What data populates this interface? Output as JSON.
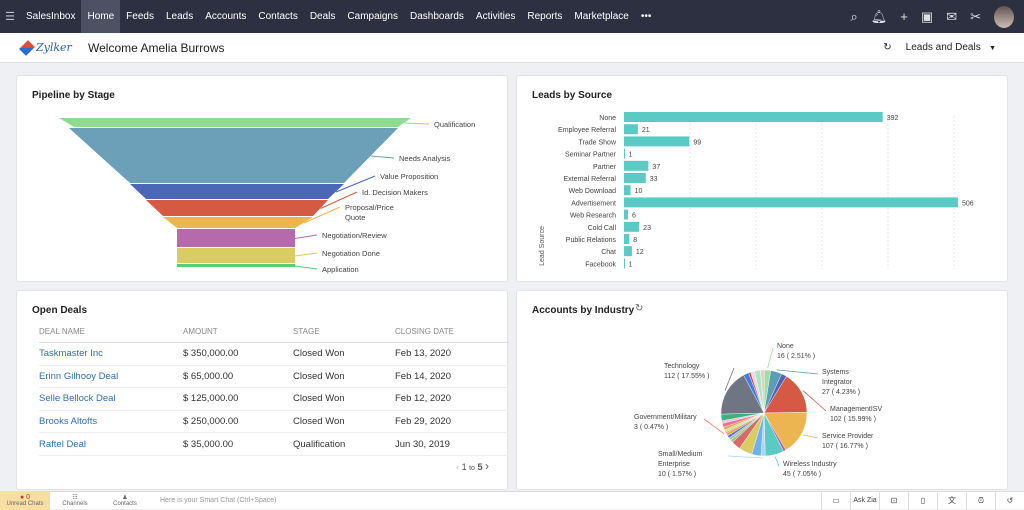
{
  "nav": {
    "items": [
      "SalesInbox",
      "Home",
      "Feeds",
      "Leads",
      "Accounts",
      "Contacts",
      "Deals",
      "Campaigns",
      "Dashboards",
      "Activities",
      "Reports",
      "Marketplace"
    ],
    "active": "Home",
    "more": "•••"
  },
  "header": {
    "logo": "Zylker",
    "welcome": "Welcome Amelia Burrows",
    "dashboard_select": "Leads and Deals"
  },
  "pipeline": {
    "title": "Pipeline by Stage"
  },
  "leads": {
    "title": "Leads by Source"
  },
  "open_deals": {
    "title": "Open Deals",
    "columns": [
      "DEAL NAME",
      "AMOUNT",
      "STAGE",
      "CLOSING DATE"
    ],
    "rows": [
      [
        "Taskmaster Inc",
        "$ 350,000.00",
        "Closed Won",
        "Feb 13, 2020"
      ],
      [
        "Erinn Gilhooy Deal",
        "$ 65,000.00",
        "Closed Won",
        "Feb 14, 2020"
      ],
      [
        "Selle Bellock Deal",
        "$ 125,000.00",
        "Closed Won",
        "Feb 12, 2020"
      ],
      [
        "Brooks Altofts",
        "$ 250,000.00",
        "Closed Won",
        "Feb 29, 2020"
      ],
      [
        "Raftel Deal",
        "$ 35,000.00",
        "Qualification",
        "Jun 30, 2019"
      ]
    ],
    "pager": {
      "current": "1",
      "sep": "to",
      "total": "5"
    }
  },
  "accounts": {
    "title": "Accounts by Industry"
  },
  "bottom": {
    "unread": "Unread Chats",
    "unread_count": "0",
    "channels": "Channels",
    "contacts": "Contacts",
    "smart_chat_placeholder": "Here is your Smart Chat (Ctrl+Space)",
    "ask_zia": "Ask Zia"
  },
  "chart_data": [
    {
      "type": "funnel",
      "title": "Pipeline by Stage",
      "categories": [
        "Qualification",
        "Needs Analysis",
        "Value Proposition",
        "Id. Decision Makers",
        "Proposal/Price Quote",
        "Negotiation/Review",
        "Negotiation Done",
        "Application"
      ],
      "colors": [
        "#8fdc8f",
        "#6ba0b8",
        "#4b67b5",
        "#d45a43",
        "#ecb551",
        "#b66aab",
        "#d8cc62",
        "#5ccc70"
      ]
    },
    {
      "type": "bar",
      "orientation": "horizontal",
      "title": "Leads by Source",
      "ylabel": "Lead Source",
      "color": "#5ccac4",
      "grid": true,
      "categories": [
        "None",
        "Employee Referral",
        "Trade Show",
        "Seminar Partner",
        "Partner",
        "External Referral",
        "Web Download",
        "Advertisement",
        "Web Research",
        "Cold Call",
        "Public Relations",
        "Chat",
        "Facebook"
      ],
      "values": [
        392,
        21,
        99,
        1,
        37,
        33,
        10,
        506,
        6,
        23,
        8,
        12,
        1
      ],
      "xlim": [
        0,
        550
      ]
    },
    {
      "type": "pie",
      "title": "Accounts by Industry",
      "slices": [
        {
          "name": "None",
          "value": 16,
          "percent": 2.51,
          "color": "#9ee09e"
        },
        {
          "name": "Systems Integrator",
          "value": 27,
          "percent": 4.23,
          "color": "#5c9db5"
        },
        {
          "percent": 2.0,
          "color": "#4b63b8"
        },
        {
          "name": "ManagementISV",
          "value": 102,
          "percent": 15.99,
          "color": "#d65a43"
        },
        {
          "name": "Service Provider",
          "value": 107,
          "percent": 16.77,
          "color": "#ecb551"
        },
        {
          "percent": 1.0,
          "color": "#a863ab"
        },
        {
          "name": "Wireless Industry",
          "value": 45,
          "percent": 7.05,
          "color": "#5ccac4"
        },
        {
          "name": "Small/Medium Enterprise",
          "value": 10,
          "percent": 1.57,
          "color": "#a6d8f0"
        },
        {
          "percent": 3.5,
          "color": "#70b0ee"
        },
        {
          "percent": 5.0,
          "color": "#d8cc62"
        },
        {
          "percent": 3.5,
          "color": "#d46a6a"
        },
        {
          "percent": 1.0,
          "color": "#8fc98f"
        },
        {
          "percent": 1.0,
          "color": "#c4b89a"
        },
        {
          "percent": 1.0,
          "color": "#3b7de0"
        },
        {
          "percent": 1.0,
          "color": "#f0a040"
        },
        {
          "name": "Government/Military",
          "value": 3,
          "percent": 0.47,
          "color": "#f08060"
        },
        {
          "percent": 1.0,
          "color": "#c8e0a0"
        },
        {
          "percent": 1.0,
          "color": "#f0a040"
        },
        {
          "percent": 1.5,
          "color": "#f07090"
        },
        {
          "percent": 1.0,
          "color": "#e8c0d8"
        },
        {
          "percent": 2.5,
          "color": "#40b080"
        },
        {
          "name": "Technology",
          "value": 112,
          "percent": 17.55,
          "color": "#6f7583"
        },
        {
          "percent": 2.0,
          "color": "#3b7de0"
        },
        {
          "percent": 0.8,
          "color": "#e04040"
        },
        {
          "percent": 1.5,
          "color": "#e8d8e8"
        },
        {
          "percent": 2.2,
          "color": "#a8e8c0"
        },
        {
          "percent": 1.5,
          "color": "#f0c8d0"
        }
      ]
    }
  ]
}
